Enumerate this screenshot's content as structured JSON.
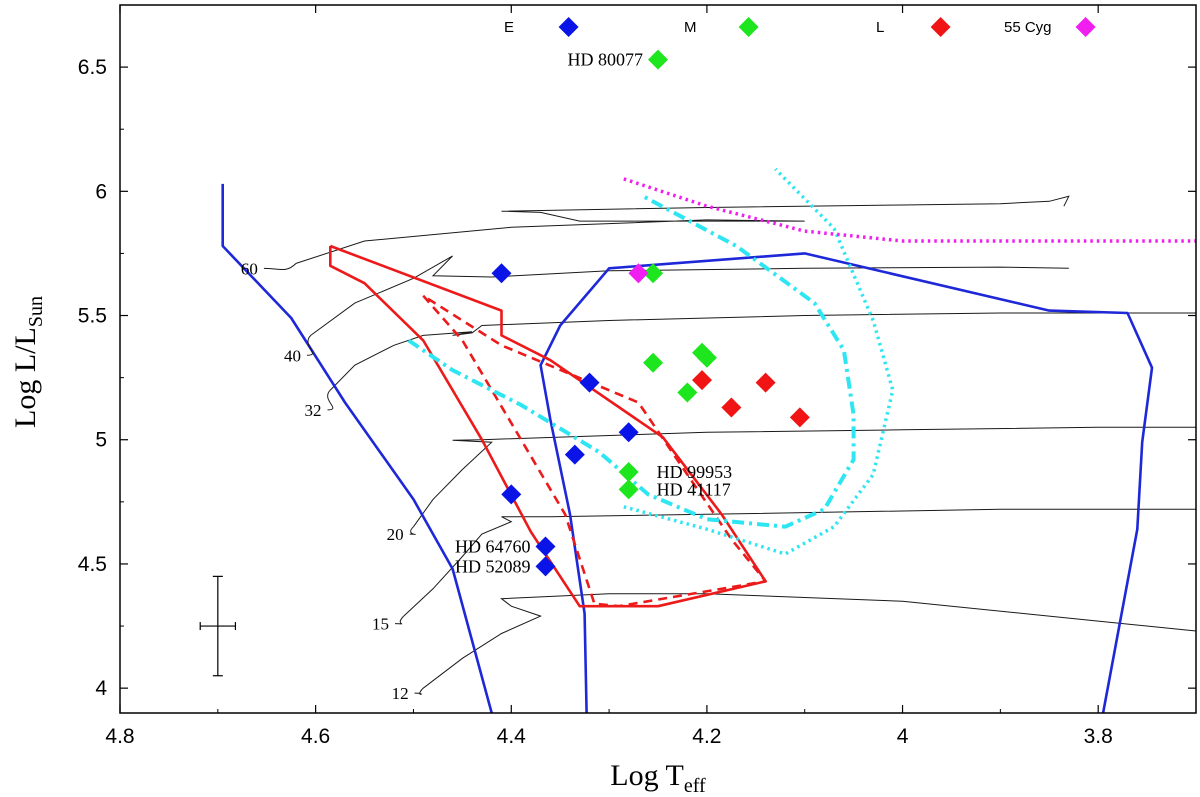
{
  "chart_data": {
    "type": "scatter",
    "title": "",
    "xlabel_main": "Log T",
    "xlabel_sub": "eff",
    "ylabel_main": "Log L/L",
    "ylabel_sub": "Sun",
    "xlim": [
      4.8,
      3.7
    ],
    "ylim": [
      3.9,
      6.75
    ],
    "x_reversed": true,
    "grid": false,
    "x_ticks": [
      {
        "value": 4.8,
        "label": "4.8"
      },
      {
        "value": 4.6,
        "label": "4.6"
      },
      {
        "value": 4.4,
        "label": "4.4"
      },
      {
        "value": 4.2,
        "label": "4.2"
      },
      {
        "value": 4.0,
        "label": "4"
      },
      {
        "value": 3.8,
        "label": "3.8"
      }
    ],
    "y_ticks": [
      {
        "value": 4.0,
        "label": "4"
      },
      {
        "value": 4.5,
        "label": "4.5"
      },
      {
        "value": 5.0,
        "label": "5"
      },
      {
        "value": 5.5,
        "label": "5.5"
      },
      {
        "value": 6.0,
        "label": "6"
      },
      {
        "value": 6.5,
        "label": "6.5"
      }
    ],
    "legend_placement": "top",
    "series": [
      {
        "name": "E",
        "color": "#0a14e6",
        "marker": "diamond",
        "points": [
          [
            4.41,
            5.67
          ],
          [
            4.32,
            5.23
          ],
          [
            4.28,
            5.03
          ],
          [
            4.335,
            4.94
          ],
          [
            4.4,
            4.78
          ],
          [
            4.365,
            4.57
          ],
          [
            4.365,
            4.49
          ]
        ]
      },
      {
        "name": "M",
        "color": "#1ee61e",
        "marker": "diamond",
        "points": [
          [
            4.25,
            6.53
          ],
          [
            4.255,
            5.67
          ],
          [
            4.255,
            5.31
          ],
          [
            4.205,
            5.35
          ],
          [
            4.2,
            5.33
          ],
          [
            4.22,
            5.19
          ],
          [
            4.28,
            4.87
          ],
          [
            4.28,
            4.8
          ]
        ]
      },
      {
        "name": "L",
        "color": "#f01414",
        "marker": "diamond",
        "points": [
          [
            4.205,
            5.24
          ],
          [
            4.175,
            5.13
          ],
          [
            4.14,
            5.23
          ],
          [
            4.105,
            5.09
          ]
        ]
      },
      {
        "name": "55 Cyg",
        "color": "#f01ef0",
        "marker": "diamond",
        "points": [
          [
            4.27,
            5.67
          ]
        ]
      }
    ],
    "star_labels": [
      {
        "text": "HD 80077",
        "x": 4.25,
        "y": 6.53,
        "side": "left"
      },
      {
        "text": "HD 99953",
        "x": 4.28,
        "y": 4.87,
        "side": "right"
      },
      {
        "text": "HD 41117",
        "x": 4.28,
        "y": 4.8,
        "side": "right"
      },
      {
        "text": "HD 64760",
        "x": 4.365,
        "y": 4.57,
        "side": "left"
      },
      {
        "text": "HD 52089",
        "x": 4.365,
        "y": 4.49,
        "side": "left"
      }
    ],
    "mass_labels": [
      {
        "text": "60",
        "x": 4.659,
        "y": 5.69
      },
      {
        "text": "40",
        "x": 4.615,
        "y": 5.34
      },
      {
        "text": "32",
        "x": 4.594,
        "y": 5.12
      },
      {
        "text": "20",
        "x": 4.51,
        "y": 4.62
      },
      {
        "text": "15",
        "x": 4.525,
        "y": 4.26
      },
      {
        "text": "12",
        "x": 4.505,
        "y": 3.98
      }
    ],
    "error_bar": {
      "x": 4.7,
      "y": 4.25,
      "dx": 0.018,
      "dy": 0.2
    },
    "tracks": [
      {
        "name": "60",
        "points": [
          [
            4.62,
            5.71
          ],
          [
            4.55,
            5.8
          ],
          [
            4.4,
            5.855
          ],
          [
            4.2,
            5.885
          ],
          [
            4.1,
            5.88
          ],
          [
            4.33,
            5.88
          ],
          [
            4.37,
            5.915
          ],
          [
            4.41,
            5.92
          ],
          [
            4.2,
            5.935
          ],
          [
            4.0,
            5.945
          ],
          [
            3.9,
            5.95
          ],
          [
            3.85,
            5.96
          ],
          [
            3.83,
            5.98
          ],
          [
            3.835,
            5.94
          ]
        ]
      },
      {
        "name": "40",
        "points": [
          [
            4.605,
            5.42
          ],
          [
            4.56,
            5.55
          ],
          [
            4.5,
            5.65
          ],
          [
            4.46,
            5.74
          ],
          [
            4.48,
            5.66
          ],
          [
            4.42,
            5.655
          ],
          [
            4.3,
            5.68
          ],
          [
            4.1,
            5.69
          ],
          [
            3.9,
            5.695
          ],
          [
            3.83,
            5.69
          ]
        ]
      },
      {
        "name": "32",
        "points": [
          [
            4.585,
            5.2
          ],
          [
            4.56,
            5.3
          ],
          [
            4.52,
            5.38
          ],
          [
            4.49,
            5.42
          ],
          [
            4.44,
            5.435
          ],
          [
            4.46,
            5.42
          ],
          [
            4.44,
            5.43
          ],
          [
            4.43,
            5.46
          ],
          [
            4.3,
            5.48
          ],
          [
            4.1,
            5.5
          ],
          [
            3.9,
            5.51
          ],
          [
            3.7,
            5.51
          ]
        ]
      },
      {
        "name": "20",
        "points": [
          [
            4.5,
            4.65
          ],
          [
            4.48,
            4.76
          ],
          [
            4.45,
            4.88
          ],
          [
            4.42,
            4.99
          ],
          [
            4.46,
            4.998
          ],
          [
            4.43,
            5.0
          ],
          [
            4.2,
            5.03
          ],
          [
            4.0,
            5.04
          ],
          [
            3.8,
            5.05
          ],
          [
            3.7,
            5.05
          ]
        ]
      },
      {
        "name": "15",
        "points": [
          [
            4.51,
            4.29
          ],
          [
            4.48,
            4.4
          ],
          [
            4.45,
            4.53
          ],
          [
            4.43,
            4.62
          ],
          [
            4.4,
            4.67
          ],
          [
            4.41,
            4.69
          ],
          [
            4.36,
            4.69
          ],
          [
            4.2,
            4.7
          ],
          [
            3.9,
            4.72
          ],
          [
            3.7,
            4.72
          ]
        ]
      },
      {
        "name": "12",
        "points": [
          [
            4.49,
            4.0
          ],
          [
            4.45,
            4.12
          ],
          [
            4.41,
            4.22
          ],
          [
            4.37,
            4.29
          ],
          [
            4.4,
            4.33
          ],
          [
            4.41,
            4.36
          ],
          [
            4.3,
            4.38
          ],
          [
            4.2,
            4.38
          ],
          [
            4.0,
            4.35
          ],
          [
            3.8,
            4.27
          ],
          [
            3.7,
            4.23
          ]
        ]
      }
    ],
    "boundary_lines": [
      {
        "name": "zams",
        "color": "#1e28d8",
        "style": "solid",
        "points": [
          [
            4.695,
            6.03
          ],
          [
            4.695,
            5.78
          ],
          [
            4.625,
            5.49
          ],
          [
            4.57,
            5.15
          ],
          [
            4.5,
            4.76
          ],
          [
            4.46,
            4.48
          ],
          [
            4.42,
            3.9
          ]
        ]
      },
      {
        "name": "contour",
        "color": "#1e28d8",
        "style": "solid",
        "points": [
          [
            4.323,
            3.9
          ],
          [
            4.325,
            4.3
          ],
          [
            4.34,
            4.7
          ],
          [
            4.36,
            5.08
          ],
          [
            4.37,
            5.3
          ],
          [
            4.35,
            5.46
          ],
          [
            4.3,
            5.69
          ],
          [
            4.1,
            5.75
          ],
          [
            3.85,
            5.52
          ],
          [
            3.77,
            5.51
          ],
          [
            3.745,
            5.29
          ],
          [
            3.755,
            4.99
          ],
          [
            3.76,
            4.64
          ],
          [
            3.795,
            3.9
          ]
        ]
      },
      {
        "name": "region-solid",
        "color": "#ec1a1a",
        "style": "solid",
        "points": [
          [
            4.585,
            5.78
          ],
          [
            4.585,
            5.7
          ],
          [
            4.55,
            5.63
          ],
          [
            4.49,
            5.4
          ],
          [
            4.43,
            5.0
          ],
          [
            4.38,
            4.63
          ],
          [
            4.33,
            4.33
          ],
          [
            4.25,
            4.33
          ],
          [
            4.14,
            4.43
          ],
          [
            4.185,
            4.7
          ],
          [
            4.245,
            5.01
          ],
          [
            4.36,
            5.32
          ],
          [
            4.41,
            5.42
          ],
          [
            4.41,
            5.52
          ],
          [
            4.585,
            5.78
          ]
        ]
      },
      {
        "name": "region-dashed",
        "color": "#ec1a1a",
        "style": "dashed",
        "points": [
          [
            4.49,
            5.58
          ],
          [
            4.45,
            5.4
          ],
          [
            4.39,
            5.0
          ],
          [
            4.345,
            4.7
          ],
          [
            4.315,
            4.34
          ],
          [
            4.29,
            4.33
          ],
          [
            4.14,
            4.43
          ],
          [
            4.175,
            4.6
          ],
          [
            4.22,
            4.86
          ],
          [
            4.27,
            5.15
          ],
          [
            4.41,
            5.38
          ],
          [
            4.49,
            5.58
          ]
        ]
      }
    ],
    "cyan_lines": [
      {
        "name": "cyan-dashdot",
        "color": "#2ee6f2",
        "style": "dashdot",
        "points": [
          [
            4.505,
            5.4
          ],
          [
            4.46,
            5.28
          ],
          [
            4.39,
            5.14
          ],
          [
            4.31,
            4.95
          ],
          [
            4.26,
            4.78
          ],
          [
            4.2,
            4.68
          ],
          [
            4.12,
            4.65
          ],
          [
            4.08,
            4.72
          ],
          [
            4.05,
            4.92
          ],
          [
            4.05,
            5.1
          ],
          [
            4.06,
            5.36
          ],
          [
            4.09,
            5.55
          ],
          [
            4.17,
            5.78
          ],
          [
            4.265,
            5.98
          ]
        ]
      },
      {
        "name": "cyan-dotted",
        "color": "#2ee6f2",
        "style": "dotted",
        "points": [
          [
            4.285,
            4.73
          ],
          [
            4.2,
            4.64
          ],
          [
            4.12,
            4.54
          ],
          [
            4.07,
            4.65
          ],
          [
            4.03,
            4.86
          ],
          [
            4.01,
            5.2
          ],
          [
            4.03,
            5.48
          ],
          [
            4.07,
            5.85
          ],
          [
            4.13,
            6.09
          ]
        ]
      },
      {
        "name": "magenta-dotted",
        "color": "#f01ef0",
        "style": "dotted",
        "points": [
          [
            4.285,
            6.05
          ],
          [
            4.2,
            5.94
          ],
          [
            4.1,
            5.84
          ],
          [
            4.0,
            5.8
          ],
          [
            3.85,
            5.8
          ],
          [
            3.7,
            5.8
          ]
        ]
      }
    ]
  }
}
